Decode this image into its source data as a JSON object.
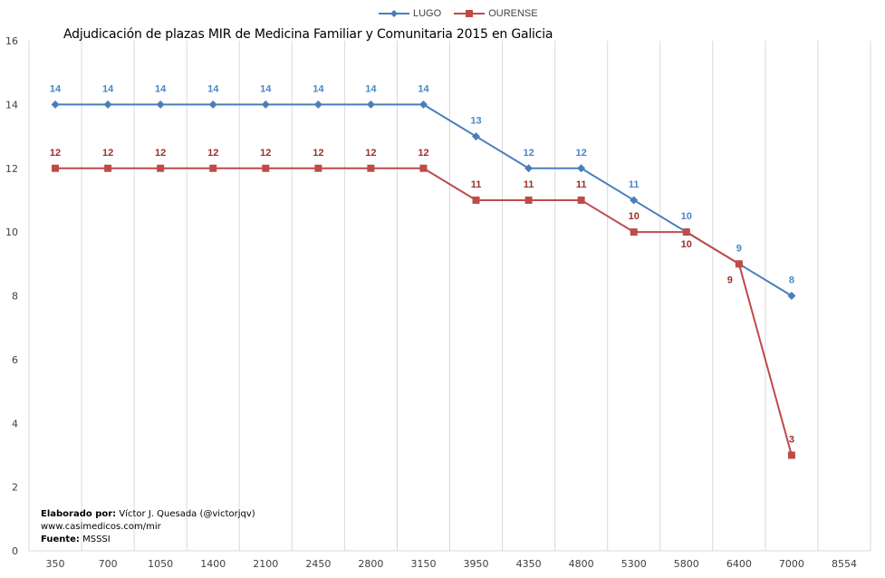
{
  "chart_data": {
    "type": "line",
    "title": "Adjudicación de plazas MIR de Medicina Familiar y Comunitaria 2015  en Galicia",
    "categories": [
      "350",
      "700",
      "1050",
      "1400",
      "2100",
      "2450",
      "2800",
      "3150",
      "3950",
      "4350",
      "4800",
      "5300",
      "5800",
      "6400",
      "7000",
      "8554"
    ],
    "ylim": [
      0,
      16
    ],
    "yticks": [
      0,
      2,
      4,
      6,
      8,
      10,
      12,
      14,
      16
    ],
    "grid": "vertical",
    "legend_position": "top-center",
    "series": [
      {
        "name": "LUGO",
        "color": "#4a7ebb",
        "marker": "diamond",
        "label_color": "#4a86c8",
        "values": [
          14,
          14,
          14,
          14,
          14,
          14,
          14,
          14,
          13,
          12,
          12,
          11,
          10,
          9,
          8,
          null
        ]
      },
      {
        "name": "OURENSE",
        "color": "#be4b48",
        "marker": "square",
        "label_color": "#9e2e2b",
        "values": [
          12,
          12,
          12,
          12,
          12,
          12,
          12,
          12,
          11,
          11,
          11,
          10,
          10,
          9,
          3,
          null
        ]
      }
    ]
  },
  "credits": {
    "line1_bold": "Elaborado por:",
    "line1_rest": " Víctor J. Quesada (@victorjqv)",
    "line2": "www.casimedicos.com/mir",
    "line3_bold": "Fuente:",
    "line3_rest": " MSSSI"
  }
}
